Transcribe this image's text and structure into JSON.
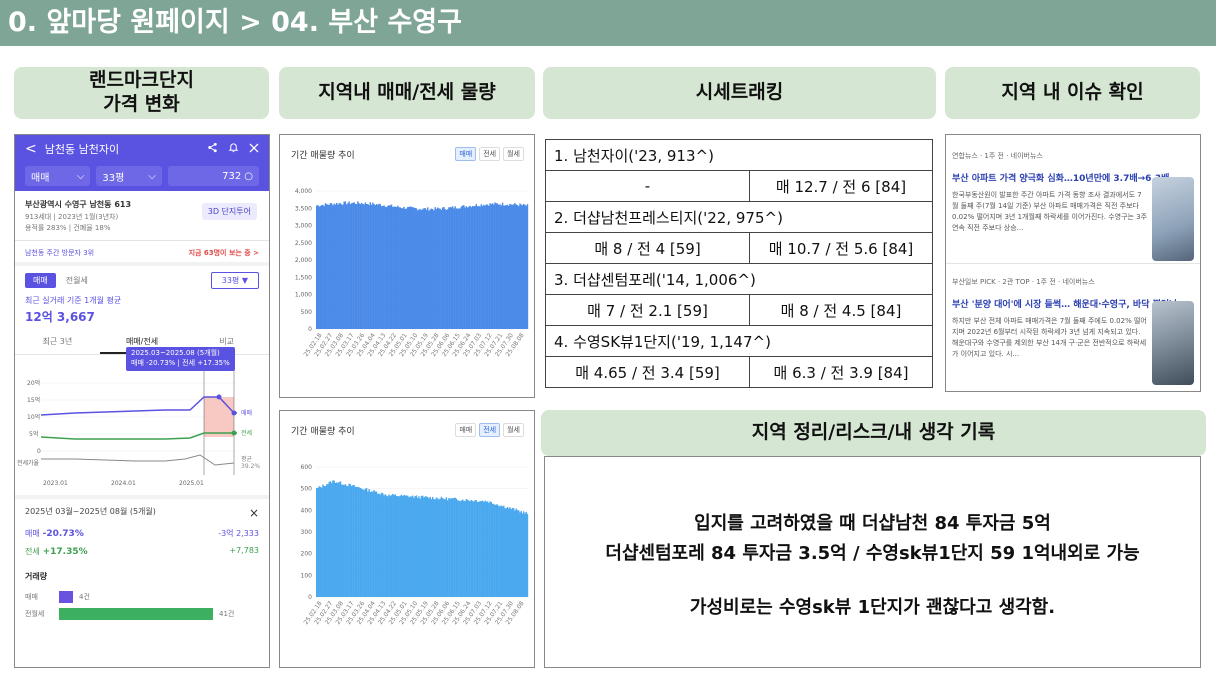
{
  "page_title": "0. 앞마당 원페이지 > 04. 부산 수영구",
  "headers": {
    "landmark": "랜드마크단지\n가격 변화",
    "volume": "지역내 매매/전세 물량",
    "tracking": "시세트래킹",
    "issues": "지역 내 이슈 확인",
    "notes": "지역 정리/리스크/내 생각 기록"
  },
  "phone": {
    "back": "<",
    "title": "남천동 남천자이",
    "deal_select": "매매",
    "size_select": "33평",
    "count": "732",
    "address": "부산광역시 수영구 남천동 613",
    "meta": "913세대 | 2023년 1월(3년차)",
    "ratio": "용적률 283% | 건폐율 18%",
    "tour_button": "3D 단지투어",
    "visitor_rank": "남천동 주간 방문자 3위",
    "visitor_now": "지금 63명이 보는 중 >",
    "tab_sale": "매매",
    "tab_rent": "전월세",
    "size_button": "33평 ▼",
    "avg_label": "최근 실거래 기준 1개월 평균",
    "avg_price": "12억 3,667",
    "tabs": [
      "최근 3년",
      "매매/전세",
      "비교"
    ],
    "tooltip_period": "2025.03~2025.08 (5개월)",
    "tooltip_change": "매매 -20.73% | 전세 +17.35%",
    "y_ticks": [
      "20억",
      "15억",
      "10억",
      "5억",
      "0",
      "전세가율"
    ],
    "x_ticks": [
      "2023.01",
      "2024.01",
      "2025.01"
    ],
    "legend_sale": "매매",
    "legend_rent": "전세",
    "legend_ratio": "평균\n39.2%",
    "period": "2025년 03월~2025년 08월 (5개월)",
    "close": "×",
    "sale_label": "매매",
    "sale_pct": "-20.73%",
    "sale_amt": "-3억 2,333",
    "rent_label": "전세",
    "rent_pct": "+17.35%",
    "rent_amt": "+7,783",
    "volume_label": "거래량",
    "vol_sale_label": "매매",
    "vol_sale": "4건",
    "vol_rent_label": "전월세",
    "vol_rent": "41건",
    "colors": {
      "header": "#5a52e0",
      "sale": "#5a52e0",
      "rent": "#3ca050",
      "red": "#e24848"
    }
  },
  "chart_data": [
    {
      "type": "bar",
      "title": "기간 매물량 추이",
      "tabs": [
        "매매",
        "전세",
        "월세"
      ],
      "active_tab": "매매",
      "y_ticks": [
        "4,000",
        "3,500",
        "3,000",
        "2,500",
        "2,000",
        "1,500",
        "1,000",
        "500",
        "0"
      ],
      "ylim": [
        0,
        4000
      ],
      "x_ticks": [
        "25.02.18",
        "25.02.27",
        "25.03.08",
        "25.03.17",
        "25.03.26",
        "25.04.04",
        "25.04.13",
        "25.04.22",
        "25.05.01",
        "25.05.10",
        "25.05.19",
        "25.05.28",
        "25.06.06",
        "25.06.15",
        "25.06.24",
        "25.07.03",
        "25.07.12",
        "25.07.21",
        "25.07.30",
        "25.08.08"
      ],
      "values_approx": {
        "start": 3600,
        "mid": 3650,
        "end": 3550
      },
      "color": "#4a8ae8"
    },
    {
      "type": "bar",
      "title": "기간 매물량 추이",
      "tabs": [
        "매매",
        "전세",
        "월세"
      ],
      "active_tab": "전세",
      "y_ticks": [
        "600",
        "500",
        "400",
        "300",
        "200",
        "100",
        "0"
      ],
      "ylim": [
        0,
        600
      ],
      "x_ticks": [
        "25.02.18",
        "25.02.27",
        "25.03.08",
        "25.03.17",
        "25.03.26",
        "25.04.04",
        "25.04.13",
        "25.04.22",
        "25.05.01",
        "25.05.10",
        "25.05.19",
        "25.05.28",
        "25.06.06",
        "25.06.15",
        "25.06.24",
        "25.07.03",
        "25.07.12",
        "25.07.21",
        "25.07.30",
        "25.08.08"
      ],
      "values_approx": {
        "start": 510,
        "peak": 545,
        "mid": 460,
        "end": 380
      },
      "color": "#4aa8ee"
    }
  ],
  "tracking": [
    {
      "title": "1. 남천자이('23, 913^)",
      "left": "-",
      "right": "매 12.7 / 전 6 [84]"
    },
    {
      "title": "2. 더샵남천프레스티지('22, 975^)",
      "left": "매 8 / 전 4 [59]",
      "right": "매 10.7 / 전 5.6 [84]"
    },
    {
      "title": "3. 더샵센텀포레('14, 1,006^)",
      "left": "매 7 / 전 2.1 [59]",
      "right": "매 8 / 전 4.5 [84]"
    },
    {
      "title": "4. 수영SK뷰1단지('19, 1,147^)",
      "left": "매 4.65 / 전 3.4 [59]",
      "right": "매 6.3 / 전 3.9 [84]"
    }
  ],
  "news": [
    {
      "source": "연합뉴스 · 1주 전 · 네이버뉴스",
      "title": "부산 아파트 가격 양극화 심화…10년만에 3.7배→6.3배",
      "body": "한국부동산원이 발표한 주간 아파트 가격 동향 조사 결과에서도 7월 둘째 주(7월 14일 기준) 부산 아파트 매매가격은 직전 주보다 0.02% 떨어지며 3년 1개월째 하락세를 이어가진다. 수영구는 3주 연속 직전 주보다 상승..."
    },
    {
      "source": "부산일보 PICK · 2관 TOP · 1주 전 · 네이버뉴스",
      "title": "부산 '분양 대어'에 시장 들썩… 해운대·수영구, 바닥 찍었나",
      "body": "하지만 부산 전체 아파트 매매가격은 7월 둘째 주에도 0.02% 떨어지며 2022년 6월부터 시작된 하락세가 3년 넘게 지속되고 있다. 해운대구와 수영구를 제외한 부산 14개 구·군은 전반적으로 하락세가 이어지고 있다. 시..."
    }
  ],
  "notes": {
    "line1": "입지를 고려하였을 때 더샵남천 84 투자금 5억",
    "line2": "더샵센텀포레 84 투자금 3.5억 / 수영sk뷰1단지 59 1억내외로 가능",
    "line3": "가성비로는 수영sk뷰 1단지가 괜찮다고 생각함."
  }
}
